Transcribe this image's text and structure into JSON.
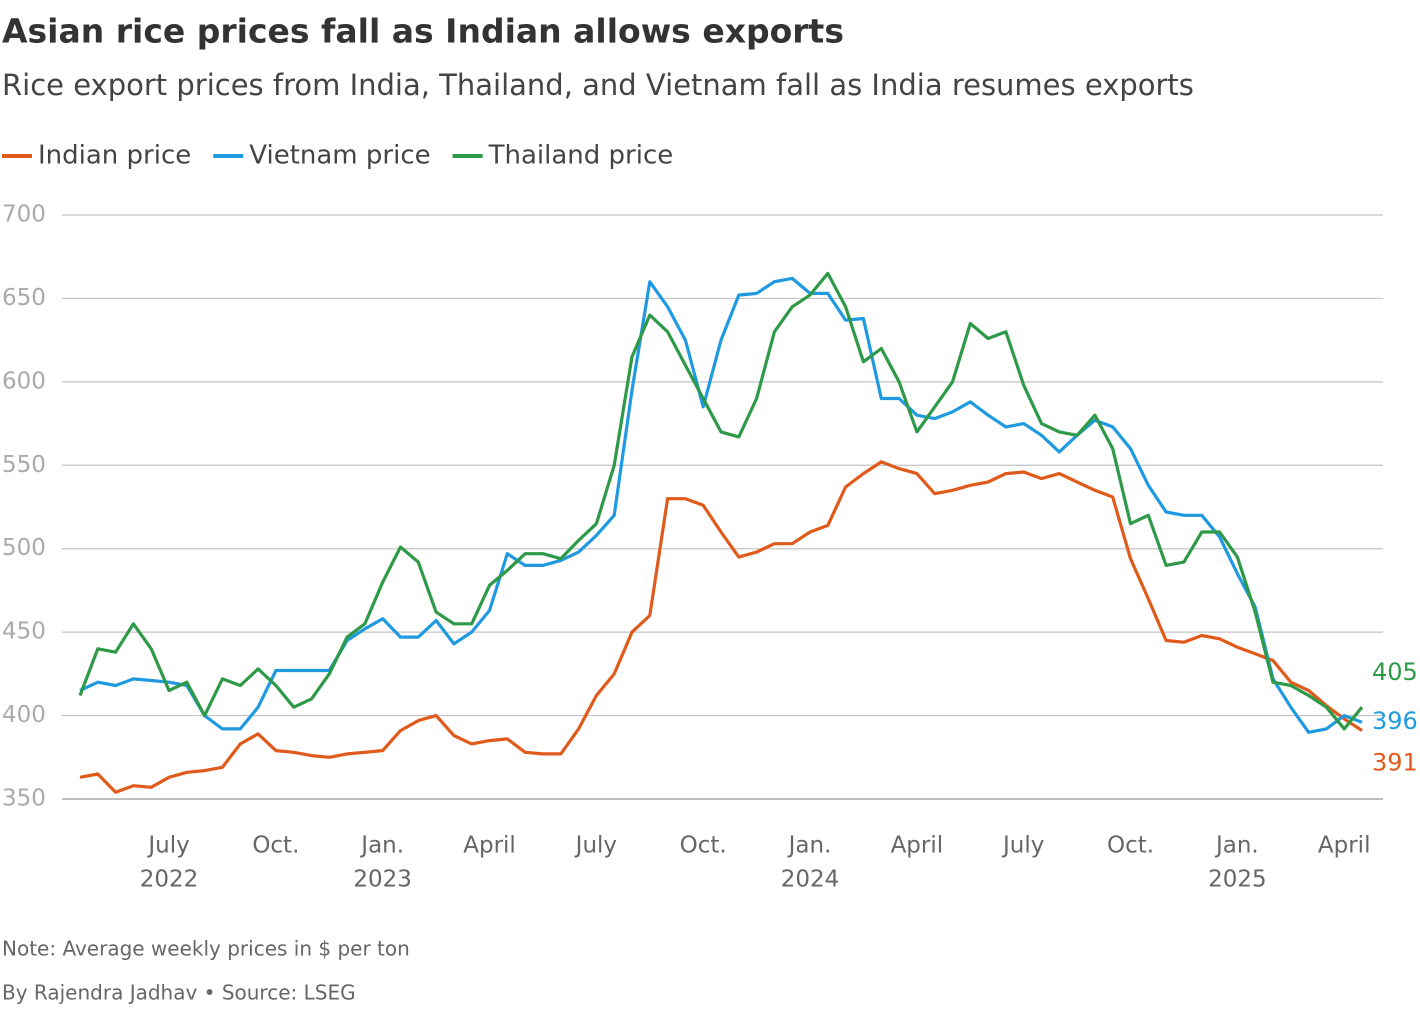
{
  "chart_data": {
    "type": "line",
    "title": "Asian rice prices fall as Indian allows exports",
    "subtitle": "Rice export prices from India, Thailand, and Vietnam fall as India resumes exports",
    "note": "Note: Average weekly prices in $ per ton",
    "source": "By Rajendra Jadhav • Source: LSEG",
    "categories": [
      null,
      null,
      null,
      null,
      null,
      "July",
      null,
      null,
      null,
      null,
      null,
      "Oct.",
      null,
      null,
      null,
      null,
      null,
      "Jan.",
      null,
      null,
      null,
      null,
      null,
      "April",
      null,
      null,
      null,
      null,
      null,
      "July",
      null,
      null,
      null,
      null,
      null,
      "Oct.",
      null,
      null,
      null,
      null,
      null,
      "Jan.",
      null,
      null,
      null,
      null,
      null,
      "April",
      null,
      null,
      null,
      null,
      null,
      "July",
      null,
      null,
      null,
      null,
      null,
      "Oct.",
      null,
      null,
      null,
      null,
      null,
      "Jan.",
      null,
      null,
      null,
      null,
      null,
      "April",
      null
    ],
    "category_years": [
      null,
      null,
      null,
      null,
      null,
      "2022",
      null,
      null,
      null,
      null,
      null,
      null,
      null,
      null,
      null,
      null,
      null,
      "2023",
      null,
      null,
      null,
      null,
      null,
      null,
      null,
      null,
      null,
      null,
      null,
      null,
      null,
      null,
      null,
      null,
      null,
      null,
      null,
      null,
      null,
      null,
      null,
      "2024",
      null,
      null,
      null,
      null,
      null,
      null,
      null,
      null,
      null,
      null,
      null,
      null,
      null,
      null,
      null,
      null,
      null,
      null,
      null,
      null,
      null,
      null,
      null,
      "2025",
      null,
      null,
      null,
      null,
      null,
      null,
      null
    ],
    "series": [
      {
        "name": "Indian price",
        "color": "#e05a1b",
        "values": [
          363,
          365,
          354,
          358,
          357,
          363,
          366,
          367,
          369,
          383,
          389,
          379,
          378,
          376,
          375,
          377,
          378,
          379,
          391,
          397,
          400,
          388,
          383,
          385,
          386,
          378,
          377,
          377,
          392,
          412,
          425,
          450,
          460,
          530,
          530,
          526,
          510,
          495,
          498,
          503,
          503,
          510,
          514,
          537,
          545,
          552,
          548,
          545,
          533,
          535,
          538,
          540,
          545,
          546,
          542,
          545,
          540,
          535,
          531,
          494,
          470,
          445,
          444,
          448,
          446,
          441,
          437,
          433,
          420,
          415,
          406,
          398,
          391
        ]
      },
      {
        "name": "Vietnam price",
        "color": "#1f9ae0",
        "values": [
          415,
          420,
          418,
          422,
          421,
          420,
          418,
          400,
          392,
          392,
          405,
          427,
          427,
          427,
          427,
          445,
          452,
          458,
          447,
          447,
          457,
          443,
          450,
          463,
          497,
          490,
          490,
          493,
          498,
          508,
          520,
          595,
          660,
          645,
          625,
          585,
          625,
          652,
          653,
          660,
          662,
          653,
          653,
          637,
          638,
          590,
          590,
          580,
          578,
          582,
          588,
          580,
          573,
          575,
          568,
          558,
          568,
          577,
          573,
          560,
          538,
          522,
          520,
          520,
          507,
          485,
          465,
          422,
          405,
          390,
          392,
          400,
          396
        ]
      },
      {
        "name": "Thailand price",
        "color": "#2e9a48",
        "values": [
          412,
          440,
          438,
          455,
          440,
          415,
          420,
          400,
          422,
          418,
          428,
          418,
          405,
          410,
          425,
          447,
          455,
          480,
          501,
          492,
          462,
          455,
          455,
          478,
          487,
          497,
          497,
          494,
          505,
          515,
          550,
          615,
          640,
          630,
          610,
          590,
          570,
          567,
          590,
          630,
          645,
          652,
          665,
          645,
          612,
          620,
          600,
          570,
          585,
          600,
          635,
          626,
          630,
          598,
          575,
          570,
          568,
          580,
          560,
          515,
          520,
          490,
          492,
          510,
          510,
          495,
          462,
          420,
          418,
          412,
          405,
          392,
          405
        ]
      }
    ],
    "ylim": [
      350,
      700
    ],
    "yticks": [
      350,
      400,
      450,
      500,
      550,
      600,
      650,
      700
    ],
    "grid": true
  }
}
